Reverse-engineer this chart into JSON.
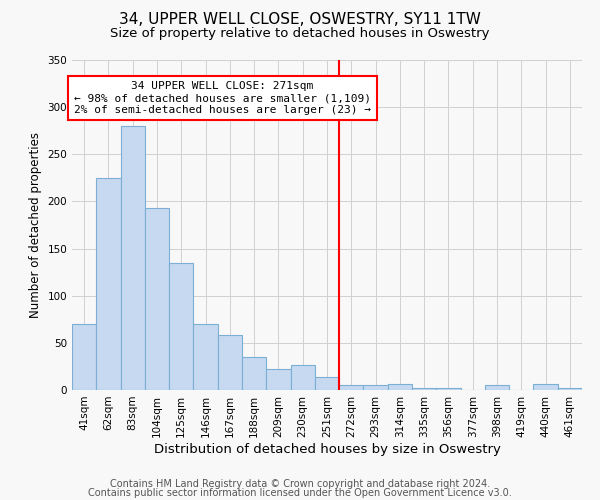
{
  "title": "34, UPPER WELL CLOSE, OSWESTRY, SY11 1TW",
  "subtitle": "Size of property relative to detached houses in Oswestry",
  "xlabel": "Distribution of detached houses by size in Oswestry",
  "ylabel": "Number of detached properties",
  "bar_labels": [
    "41sqm",
    "62sqm",
    "83sqm",
    "104sqm",
    "125sqm",
    "146sqm",
    "167sqm",
    "188sqm",
    "209sqm",
    "230sqm",
    "251sqm",
    "272sqm",
    "293sqm",
    "314sqm",
    "335sqm",
    "356sqm",
    "377sqm",
    "398sqm",
    "419sqm",
    "440sqm",
    "461sqm"
  ],
  "bar_values": [
    70,
    225,
    280,
    193,
    135,
    70,
    58,
    35,
    22,
    26,
    14,
    5,
    5,
    6,
    2,
    2,
    0,
    5,
    0,
    6,
    2
  ],
  "bar_color": "#c6d9f1",
  "bar_edge_color": "#7bafd4",
  "vline_color": "red",
  "annotation_title": "34 UPPER WELL CLOSE: 271sqm",
  "annotation_line1": "← 98% of detached houses are smaller (1,109)",
  "annotation_line2": "2% of semi-detached houses are larger (23) →",
  "annotation_box_color": "white",
  "annotation_box_edge": "red",
  "ylim": [
    0,
    350
  ],
  "yticks": [
    0,
    50,
    100,
    150,
    200,
    250,
    300,
    350
  ],
  "footer1": "Contains HM Land Registry data © Crown copyright and database right 2024.",
  "footer2": "Contains public sector information licensed under the Open Government Licence v3.0.",
  "bg_color": "#f8f8f8",
  "grid_color": "#d0d0d0",
  "title_fontsize": 11,
  "subtitle_fontsize": 9.5,
  "xlabel_fontsize": 9.5,
  "ylabel_fontsize": 8.5,
  "footer_fontsize": 7,
  "tick_fontsize": 7.5,
  "annot_fontsize": 8
}
